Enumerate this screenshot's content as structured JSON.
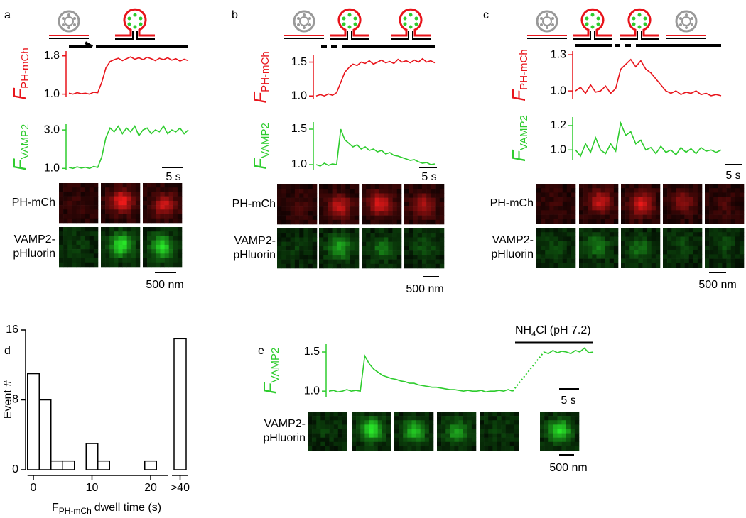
{
  "trace_panels": [
    {
      "letter": "a",
      "traces": [
        {
          "label": "F",
          "subscript": "PH-mCh",
          "color": "#e8141b",
          "ylim": [
            0.95,
            1.9
          ],
          "yticks": [
            {
              "value": 1.0,
              "label": "1.0"
            },
            1.8
          ],
          "values": [
            1.02,
            1.0,
            1.03,
            1.01,
            1.02,
            1.0,
            1.04,
            1.03,
            1.25,
            1.55,
            1.68,
            1.72,
            1.75,
            1.7,
            1.74,
            1.78,
            1.73,
            1.76,
            1.72,
            1.77,
            1.74,
            1.7,
            1.75,
            1.72,
            1.76,
            1.71,
            1.74,
            1.69,
            1.73,
            1.7
          ]
        },
        {
          "label": "F",
          "subscript": "VAMP2",
          "color": "#2ecc2e",
          "ylim": [
            0.9,
            3.3
          ],
          "yticks": [
            {
              "value": 1.0,
              "label": "1.0"
            },
            {
              "value": 3.0,
              "label": "3.0"
            }
          ],
          "values": [
            1.05,
            1.0,
            1.08,
            1.02,
            1.06,
            1.0,
            1.1,
            1.05,
            1.6,
            2.6,
            3.1,
            2.9,
            3.2,
            2.8,
            3.1,
            2.9,
            3.2,
            2.7,
            3.0,
            3.1,
            2.8,
            3.0,
            2.9,
            3.2,
            2.8,
            3.0,
            2.9,
            3.1,
            2.8,
            3.0
          ]
        }
      ],
      "time_scale": "5 s",
      "image_rows": [
        [
          "PH-mCh"
        ],
        [
          "VAMP2-",
          "pHluorin"
        ]
      ],
      "space_scale": "500 nm"
    },
    {
      "letter": "b",
      "traces": [
        {
          "label": "F",
          "subscript": "PH-mCh",
          "color": "#e8141b",
          "ylim": [
            0.95,
            1.6
          ],
          "yticks": [
            {
              "value": 1.0,
              "label": "1.0"
            },
            1.5
          ],
          "values": [
            1.0,
            1.02,
            1.0,
            1.03,
            1.01,
            1.05,
            1.2,
            1.35,
            1.42,
            1.47,
            1.45,
            1.5,
            1.48,
            1.52,
            1.47,
            1.5,
            1.53,
            1.49,
            1.51,
            1.48,
            1.54,
            1.5,
            1.52,
            1.49,
            1.53,
            1.5,
            1.55,
            1.5,
            1.52,
            1.49
          ]
        },
        {
          "label": "F",
          "subscript": "VAMP2",
          "color": "#2ecc2e",
          "ylim": [
            0.92,
            1.6
          ],
          "yticks": [
            {
              "value": 1.0,
              "label": "1.0"
            },
            1.5
          ],
          "values": [
            1.0,
            0.98,
            1.02,
            0.99,
            1.01,
            1.0,
            1.5,
            1.35,
            1.3,
            1.25,
            1.28,
            1.22,
            1.25,
            1.2,
            1.22,
            1.18,
            1.2,
            1.15,
            1.17,
            1.13,
            1.12,
            1.1,
            1.08,
            1.06,
            1.07,
            1.04,
            1.02,
            1.03,
            1.0,
            1.01
          ]
        }
      ],
      "time_scale": "5 s",
      "image_rows": [
        [
          "PH-mCh"
        ],
        [
          "VAMP2-",
          "pHluorin"
        ]
      ],
      "space_scale": "500 nm"
    },
    {
      "letter": "c",
      "traces": [
        {
          "label": "F",
          "subscript": "PH-mCh",
          "color": "#e8141b",
          "ylim": [
            0.93,
            1.33
          ],
          "yticks": [
            {
              "value": 1.0,
              "label": "1.0"
            },
            1.3
          ],
          "values": [
            1.0,
            1.03,
            0.98,
            1.05,
            0.99,
            1.0,
            1.04,
            0.98,
            1.02,
            1.18,
            1.22,
            1.26,
            1.2,
            1.25,
            1.18,
            1.15,
            1.1,
            1.05,
            1.0,
            0.98,
            1.0,
            0.97,
            0.99,
            0.98,
            1.0,
            0.97,
            0.98,
            0.96,
            0.97,
            0.96
          ]
        },
        {
          "label": "F",
          "subscript": "VAMP2",
          "color": "#2ecc2e",
          "ylim": [
            0.92,
            1.27
          ],
          "yticks": [
            {
              "value": 1.0,
              "label": "1.0"
            },
            1.2
          ],
          "values": [
            1.0,
            0.95,
            1.05,
            0.98,
            1.1,
            1.0,
            0.97,
            1.05,
            0.99,
            1.22,
            1.12,
            1.15,
            1.05,
            1.08,
            1.0,
            1.02,
            0.97,
            1.03,
            0.98,
            1.0,
            0.96,
            1.02,
            0.98,
            1.01,
            0.97,
            1.02,
            0.99,
            1.0,
            0.98,
            1.0
          ]
        }
      ],
      "time_scale": "5 s",
      "image_rows": [
        [
          "PH-mCh"
        ],
        [
          "VAMP2-",
          "pHluorin"
        ]
      ],
      "space_scale": "500 nm"
    }
  ],
  "panel_d": {
    "letter": "d",
    "type": "histogram",
    "bins": [
      -1,
      1,
      3,
      5,
      7,
      9,
      11,
      13,
      15,
      17,
      19,
      21
    ],
    "counts": [
      11,
      8,
      1,
      1,
      0,
      3,
      1,
      0,
      0,
      0,
      1
    ],
    "overflow": {
      "label": ">40",
      "count": 15
    },
    "xlim": [
      -1,
      23
    ],
    "xticks": [
      0,
      10,
      20
    ],
    "ylim": [
      0,
      16
    ],
    "yticks": [
      0,
      8,
      16
    ],
    "ylabel": "Event #",
    "xlabel": {
      "main": "F",
      "sub": "PH-mCh",
      "rest": "dwell time (s)"
    }
  },
  "panel_e": {
    "letter": "e",
    "trace": {
      "label": "F",
      "subscript": "VAMP2",
      "color": "#2ecc2e",
      "ylim": [
        0.92,
        1.6
      ],
      "yticks": [
        {
          "value": 1.0,
          "label": "1.0"
        },
        1.5
      ],
      "values": [
        1.0,
        1.01,
        0.99,
        1.0,
        1.02,
        1.0,
        1.01,
        1.0,
        1.45,
        1.35,
        1.28,
        1.24,
        1.2,
        1.18,
        1.16,
        1.15,
        1.13,
        1.12,
        1.1,
        1.1,
        1.08,
        1.07,
        1.06,
        1.05,
        1.05,
        1.04,
        1.03,
        1.02,
        1.02,
        1.01,
        1.0,
        1.01,
        1.0,
        1.0,
        1.01,
        0.99,
        1.0,
        1.0,
        1.01,
        1.0,
        1.02,
        1.0,
        null,
        null,
        null,
        null,
        null,
        null,
        1.5,
        1.48,
        1.52,
        1.49,
        1.51,
        1.5,
        1.48,
        1.52,
        1.5,
        1.55,
        1.49,
        1.5
      ]
    },
    "treatment": [
      "NH",
      "4",
      "Cl (pH 7.2)"
    ],
    "time_scale": "5 s",
    "image_rows": [
      [
        "VAMP2-",
        "pHluorin"
      ]
    ],
    "space_scale": "500 nm"
  }
}
